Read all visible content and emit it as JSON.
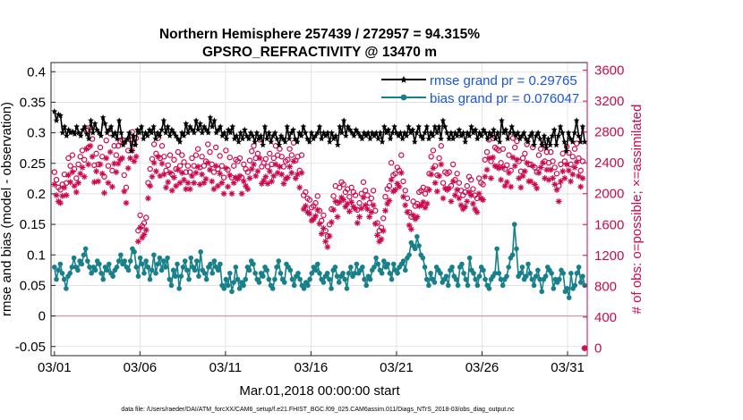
{
  "chart_data": {
    "type": "line",
    "title": "Northern Hemisphere 257439 / 272957 = 94.315%",
    "subtitle": "GPSRO_REFRACTIVITY @ 13470 m",
    "xlabel": "Mar.01,2018 00:00:00 start",
    "ylabel_left": "rmse and bias (model - observation)",
    "ylabel_right": "# of obs: o=possible; ×=assimilated",
    "footnote": "data file: /Users/raeder/DAI/ATM_forcXX/CAM6_setup/f.e21.FHIST_BGC.f09_025.CAM6assim.011/Diags_NTrS_2018-03/obs_diag_output.nc",
    "x_ticks": [
      "03/01",
      "03/06",
      "03/11",
      "03/16",
      "03/21",
      "03/26",
      "03/31"
    ],
    "x_tick_days": [
      1,
      6,
      11,
      16,
      21,
      26,
      31
    ],
    "xlim": [
      0.8,
      32.15
    ],
    "ylim_left": [
      -0.065,
      0.415
    ],
    "yticks_left": [
      "-0.05",
      "0",
      "0.05",
      "0.1",
      "0.15",
      "0.2",
      "0.25",
      "0.3",
      "0.35",
      "0.4"
    ],
    "ylim_right": [
      -100,
      3700
    ],
    "yticks_right": [
      "0",
      "400",
      "800",
      "1200",
      "1600",
      "2000",
      "2400",
      "2800",
      "3200",
      "3600"
    ],
    "grid": true,
    "legend_position": "top-right",
    "series": [
      {
        "name": "rmse grand pr = 0.29765",
        "axis": "left",
        "color": "#000000",
        "values": [
          0.335,
          0.32,
          0.33,
          0.328,
          0.3,
          0.31,
          0.295,
          0.305,
          0.3,
          0.302,
          0.298,
          0.31,
          0.3,
          0.295,
          0.305,
          0.31,
          0.298,
          0.29,
          0.32,
          0.3,
          0.315,
          0.305,
          0.3,
          0.295,
          0.325,
          0.315,
          0.3,
          0.305,
          0.31,
          0.295,
          0.3,
          0.29,
          0.32,
          0.3,
          0.28,
          0.285,
          0.29,
          0.3,
          0.27,
          0.295,
          0.28,
          0.305,
          0.3,
          0.31,
          0.29,
          0.3,
          0.295,
          0.305,
          0.3,
          0.31,
          0.29,
          0.3,
          0.295,
          0.305,
          0.32,
          0.3,
          0.31,
          0.295,
          0.305,
          0.3,
          0.295,
          0.29,
          0.285,
          0.3,
          0.295,
          0.315,
          0.3,
          0.31,
          0.305,
          0.3,
          0.32,
          0.305,
          0.315,
          0.3,
          0.31,
          0.305,
          0.3,
          0.325,
          0.31,
          0.32,
          0.3,
          0.305,
          0.31,
          0.295,
          0.3,
          0.29,
          0.305,
          0.3,
          0.31,
          0.29,
          0.295,
          0.285,
          0.3,
          0.29,
          0.305,
          0.295,
          0.29,
          0.3,
          0.295,
          0.285,
          0.3,
          0.29,
          0.295,
          0.28,
          0.31,
          0.29,
          0.3,
          0.285,
          0.295,
          0.3,
          0.29,
          0.28,
          0.295,
          0.29,
          0.285,
          0.31,
          0.29,
          0.3,
          0.305,
          0.29,
          0.285,
          0.3,
          0.295,
          0.31,
          0.3,
          0.29,
          0.285,
          0.3,
          0.29,
          0.295,
          0.3,
          0.31,
          0.29,
          0.3,
          0.295,
          0.3,
          0.285,
          0.3,
          0.29,
          0.295,
          0.28,
          0.31,
          0.3,
          0.32,
          0.295,
          0.31,
          0.305,
          0.3,
          0.295,
          0.305,
          0.3,
          0.295,
          0.29,
          0.3,
          0.295,
          0.3,
          0.29,
          0.3,
          0.295,
          0.3,
          0.29,
          0.3,
          0.285,
          0.31,
          0.3,
          0.305,
          0.29,
          0.3,
          0.31,
          0.3,
          0.295,
          0.3,
          0.29,
          0.3,
          0.295,
          0.31,
          0.3,
          0.305,
          0.285,
          0.3,
          0.31,
          0.295,
          0.29,
          0.3,
          0.31,
          0.29,
          0.3,
          0.295,
          0.31,
          0.3,
          0.31,
          0.29,
          0.32,
          0.31,
          0.3,
          0.29,
          0.3,
          0.29,
          0.3,
          0.295,
          0.305,
          0.295,
          0.3,
          0.285,
          0.3,
          0.295,
          0.31,
          0.3,
          0.305,
          0.29,
          0.3,
          0.295,
          0.305,
          0.3,
          0.29,
          0.3,
          0.295,
          0.305,
          0.29,
          0.3,
          0.285,
          0.32,
          0.3,
          0.305,
          0.29,
          0.3,
          0.31,
          0.3,
          0.295,
          0.3,
          0.29,
          0.295,
          0.3,
          0.29,
          0.285,
          0.295,
          0.3,
          0.28,
          0.295,
          0.3,
          0.29,
          0.28,
          0.295,
          0.275,
          0.29,
          0.28,
          0.295,
          0.305,
          0.28,
          0.295,
          0.31,
          0.3,
          0.285,
          0.27,
          0.3,
          0.29,
          0.285,
          0.3,
          0.32,
          0.295,
          0.285,
          0.31,
          0.285
        ]
      },
      {
        "name": "bias grand pr = 0.076047",
        "axis": "left",
        "color": "#17808a",
        "values": [
          0.08,
          0.06,
          0.075,
          0.085,
          0.07,
          0.06,
          0.045,
          0.065,
          0.07,
          0.08,
          0.095,
          0.08,
          0.075,
          0.09,
          0.085,
          0.1,
          0.11,
          0.09,
          0.08,
          0.07,
          0.08,
          0.075,
          0.09,
          0.085,
          0.07,
          0.06,
          0.08,
          0.075,
          0.085,
          0.07,
          0.065,
          0.075,
          0.08,
          0.09,
          0.1,
          0.085,
          0.09,
          0.08,
          0.075,
          0.09,
          0.11,
          0.105,
          0.08,
          0.065,
          0.095,
          0.085,
          0.07,
          0.09,
          0.08,
          0.06,
          0.075,
          0.1,
          0.07,
          0.085,
          0.095,
          0.075,
          0.09,
          0.08,
          0.095,
          0.06,
          0.05,
          0.075,
          0.065,
          0.085,
          0.045,
          0.065,
          0.08,
          0.09,
          0.075,
          0.06,
          0.095,
          0.08,
          0.075,
          0.09,
          0.065,
          0.105,
          0.075,
          0.07,
          0.06,
          0.08,
          0.085,
          0.07,
          0.09,
          0.08,
          0.075,
          0.085,
          0.05,
          0.045,
          0.06,
          0.05,
          0.07,
          0.04,
          0.055,
          0.08,
          0.06,
          0.045,
          0.055,
          0.05,
          0.06,
          0.08,
          0.075,
          0.09,
          0.085,
          0.07,
          0.06,
          0.055,
          0.07,
          0.065,
          0.08,
          0.075,
          0.06,
          0.05,
          0.045,
          0.06,
          0.08,
          0.09,
          0.07,
          0.06,
          0.055,
          0.085,
          0.08,
          0.075,
          0.06,
          0.05,
          0.065,
          0.07,
          0.06,
          0.05,
          0.045,
          0.055,
          0.05,
          0.06,
          0.07,
          0.08,
          0.075,
          0.085,
          0.07,
          0.06,
          0.055,
          0.065,
          0.07,
          0.06,
          0.045,
          0.075,
          0.08,
          0.065,
          0.055,
          0.065,
          0.07,
          0.06,
          0.045,
          0.07,
          0.08,
          0.065,
          0.07,
          0.085,
          0.07,
          0.075,
          0.08,
          0.06,
          0.05,
          0.065,
          0.06,
          0.075,
          0.08,
          0.095,
          0.085,
          0.075,
          0.07,
          0.09,
          0.08,
          0.085,
          0.07,
          0.06,
          0.085,
          0.075,
          0.07,
          0.08,
          0.085,
          0.09,
          0.075,
          0.095,
          0.1,
          0.12,
          0.115,
          0.11,
          0.13,
          0.115,
          0.1,
          0.095,
          0.08,
          0.06,
          0.05,
          0.07,
          0.06,
          0.055,
          0.08,
          0.075,
          0.07,
          0.055,
          0.06,
          0.065,
          0.05,
          0.075,
          0.08,
          0.065,
          0.06,
          0.05,
          0.08,
          0.085,
          0.07,
          0.06,
          0.05,
          0.095,
          0.075,
          0.07,
          0.06,
          0.05,
          0.065,
          0.08,
          0.075,
          0.06,
          0.05,
          0.045,
          0.06,
          0.065,
          0.07,
          0.11,
          0.07,
          0.06,
          0.05,
          0.06,
          0.065,
          0.08,
          0.095,
          0.1,
          0.15,
          0.11,
          0.065,
          0.07,
          0.08,
          0.06,
          0.065,
          0.085,
          0.07,
          0.06,
          0.05,
          0.065,
          0.075,
          0.06,
          0.04,
          0.06,
          0.065,
          0.08,
          0.075,
          0.07,
          0.045,
          0.06,
          0.055,
          0.06,
          0.075,
          0.07,
          0.04,
          0.045,
          0.03,
          0.07,
          0.045,
          0.05,
          0.07,
          0.08,
          0.055,
          0.065,
          0.05
        ]
      },
      {
        "name": "obs possible",
        "axis": "right",
        "color": "#cc0a4e",
        "marker": "o",
        "values": [
          2280,
          2180,
          2080,
          2050,
          2120,
          2250,
          2140,
          2460,
          2360,
          2500,
          2320,
          2200,
          2380,
          2480,
          2560,
          2440,
          2820,
          2600,
          2860,
          2710,
          2370,
          2520,
          2380,
          2600,
          2480,
          2220,
          2690,
          2360,
          2780,
          2300,
          2620,
          2500,
          2620,
          2680,
          2700,
          2240,
          2080,
          2560,
          2700,
          2800,
          2650,
          2720,
          1520,
          1720,
          1580,
          1620,
          1690,
          2140,
          2320,
          2450,
          2640,
          2520,
          2720,
          2460,
          2620,
          2480,
          2300,
          2370,
          2500,
          2250,
          2440,
          2320,
          2540,
          2360,
          2500,
          2410,
          2280,
          2360,
          2280,
          2460,
          2360,
          2500,
          2580,
          2340,
          2480,
          2360,
          2420,
          2640,
          2540,
          2380,
          2280,
          2600,
          2320,
          2490,
          2360,
          2210,
          2560,
          2310,
          2470,
          2210,
          2360,
          2440,
          2420,
          2460,
          2210,
          2380,
          2320,
          2280,
          2430,
          2550,
          2620,
          2460,
          2520,
          2700,
          2350,
          2400,
          2450,
          2350,
          2520,
          2380,
          2460,
          2620,
          2500,
          2580,
          2480,
          2350,
          2420,
          2440,
          2580,
          2500,
          2660,
          2430,
          2480,
          2300,
          2500,
          1980,
          2020,
          1940,
          1920,
          1820,
          1840,
          1880,
          1970,
          1780,
          1650,
          1720,
          1520,
          1450,
          1600,
          1800,
          1970,
          2100,
          1880,
          2080,
          2150,
          2120,
          2020,
          2060,
          1960,
          2080,
          2020,
          1980,
          1790,
          1880,
          2000,
          2150,
          2040,
          1980,
          1880,
          1940,
          2040,
          1780,
          1620,
          1520,
          1560,
          1680,
          1960,
          2060,
          2100,
          2400,
          2240,
          2260,
          2340,
          2300,
          2500,
          2160,
          2040,
          1940,
          1760,
          1700,
          1900,
          1840,
          1870,
          2020,
          2040,
          2080,
          2000,
          2060,
          2260,
          2480,
          2560,
          2360,
          2240,
          2460,
          2620,
          2140,
          2280,
          2260,
          2280,
          2100,
          2380,
          2180,
          2260,
          2140,
          2040,
          1980,
          2020,
          2100,
          2220,
          2180,
          2060,
          1980,
          1940,
          2200,
          2140,
          2120,
          2440,
          2540,
          2700,
          2420,
          2720,
          2600,
          2580,
          2560,
          2400,
          2580,
          2320,
          2370,
          2500,
          2300,
          2720,
          2600,
          2680,
          2420,
          2290,
          2460,
          2520,
          2640,
          2380,
          2380,
          2600,
          2340,
          2280,
          2500,
          2580,
          2640,
          2420,
          2540,
          2400,
          2540,
          2420,
          2340,
          2260,
          2100,
          2380,
          2520,
          2420,
          2610,
          2530,
          2380,
          2480,
          2580,
          2650,
          2460,
          2300,
          2420,
          -3
        ]
      },
      {
        "name": "obs assimilated",
        "axis": "right",
        "color": "#cc0a4e",
        "marker": "*",
        "values": [
          2120,
          1980,
          1900,
          1880,
          1970,
          2080,
          1980,
          2240,
          2150,
          2280,
          2100,
          2020,
          2140,
          2260,
          2340,
          2220,
          2580,
          2380,
          2620,
          2480,
          2150,
          2290,
          2160,
          2380,
          2260,
          2010,
          2460,
          2140,
          2540,
          2090,
          2390,
          2280,
          2390,
          2440,
          2460,
          2030,
          1880,
          2330,
          2460,
          2560,
          2420,
          2480,
          1380,
          1560,
          1430,
          1470,
          1530,
          1940,
          2100,
          2220,
          2400,
          2290,
          2480,
          2230,
          2390,
          2250,
          2080,
          2150,
          2270,
          2040,
          2210,
          2100,
          2310,
          2140,
          2270,
          2180,
          2060,
          2140,
          2060,
          2230,
          2140,
          2270,
          2350,
          2120,
          2250,
          2140,
          2190,
          2400,
          2310,
          2160,
          2060,
          2360,
          2100,
          2260,
          2140,
          2000,
          2330,
          2090,
          2240,
          2000,
          2140,
          2210,
          2190,
          2230,
          2000,
          2160,
          2100,
          2060,
          2200,
          2320,
          2380,
          2230,
          2290,
          2460,
          2130,
          2170,
          2220,
          2130,
          2290,
          2160,
          2230,
          2380,
          2270,
          2350,
          2250,
          2130,
          2190,
          2210,
          2350,
          2270,
          2420,
          2200,
          2250,
          2080,
          2270,
          1800,
          1840,
          1760,
          1740,
          1650,
          1670,
          1710,
          1790,
          1610,
          1480,
          1550,
          1380,
          1310,
          1450,
          1630,
          1790,
          1900,
          1700,
          1890,
          1950,
          1920,
          1830,
          1870,
          1770,
          1890,
          1830,
          1800,
          1620,
          1700,
          1810,
          1950,
          1850,
          1800,
          1700,
          1760,
          1850,
          1610,
          1460,
          1380,
          1410,
          1520,
          1780,
          1870,
          1910,
          2180,
          2030,
          2050,
          2130,
          2090,
          2270,
          1960,
          1850,
          1760,
          1590,
          1540,
          1720,
          1670,
          1700,
          1840,
          1850,
          1890,
          1820,
          1870,
          2050,
          2250,
          2330,
          2140,
          2030,
          2230,
          2380,
          1940,
          2070,
          2050,
          2070,
          1900,
          2160,
          1980,
          2050,
          1940,
          1850,
          1800,
          1830,
          1900,
          2020,
          1980,
          1870,
          1800,
          1760,
          2000,
          1940,
          1920,
          2220,
          2310,
          2460,
          2200,
          2470,
          2360,
          2350,
          2330,
          2180,
          2340,
          2100,
          2150,
          2270,
          2090,
          2470,
          2360,
          2440,
          2200,
          2080,
          2230,
          2290,
          2400,
          2160,
          2160,
          2360,
          2120,
          2070,
          2270,
          2340,
          2400,
          2200,
          2310,
          2180,
          2310,
          2200,
          2120,
          2050,
          1900,
          2160,
          2290,
          2200,
          2380,
          2300,
          2160,
          2250,
          2340,
          2410,
          2230,
          2090,
          2200,
          -3
        ]
      }
    ]
  }
}
